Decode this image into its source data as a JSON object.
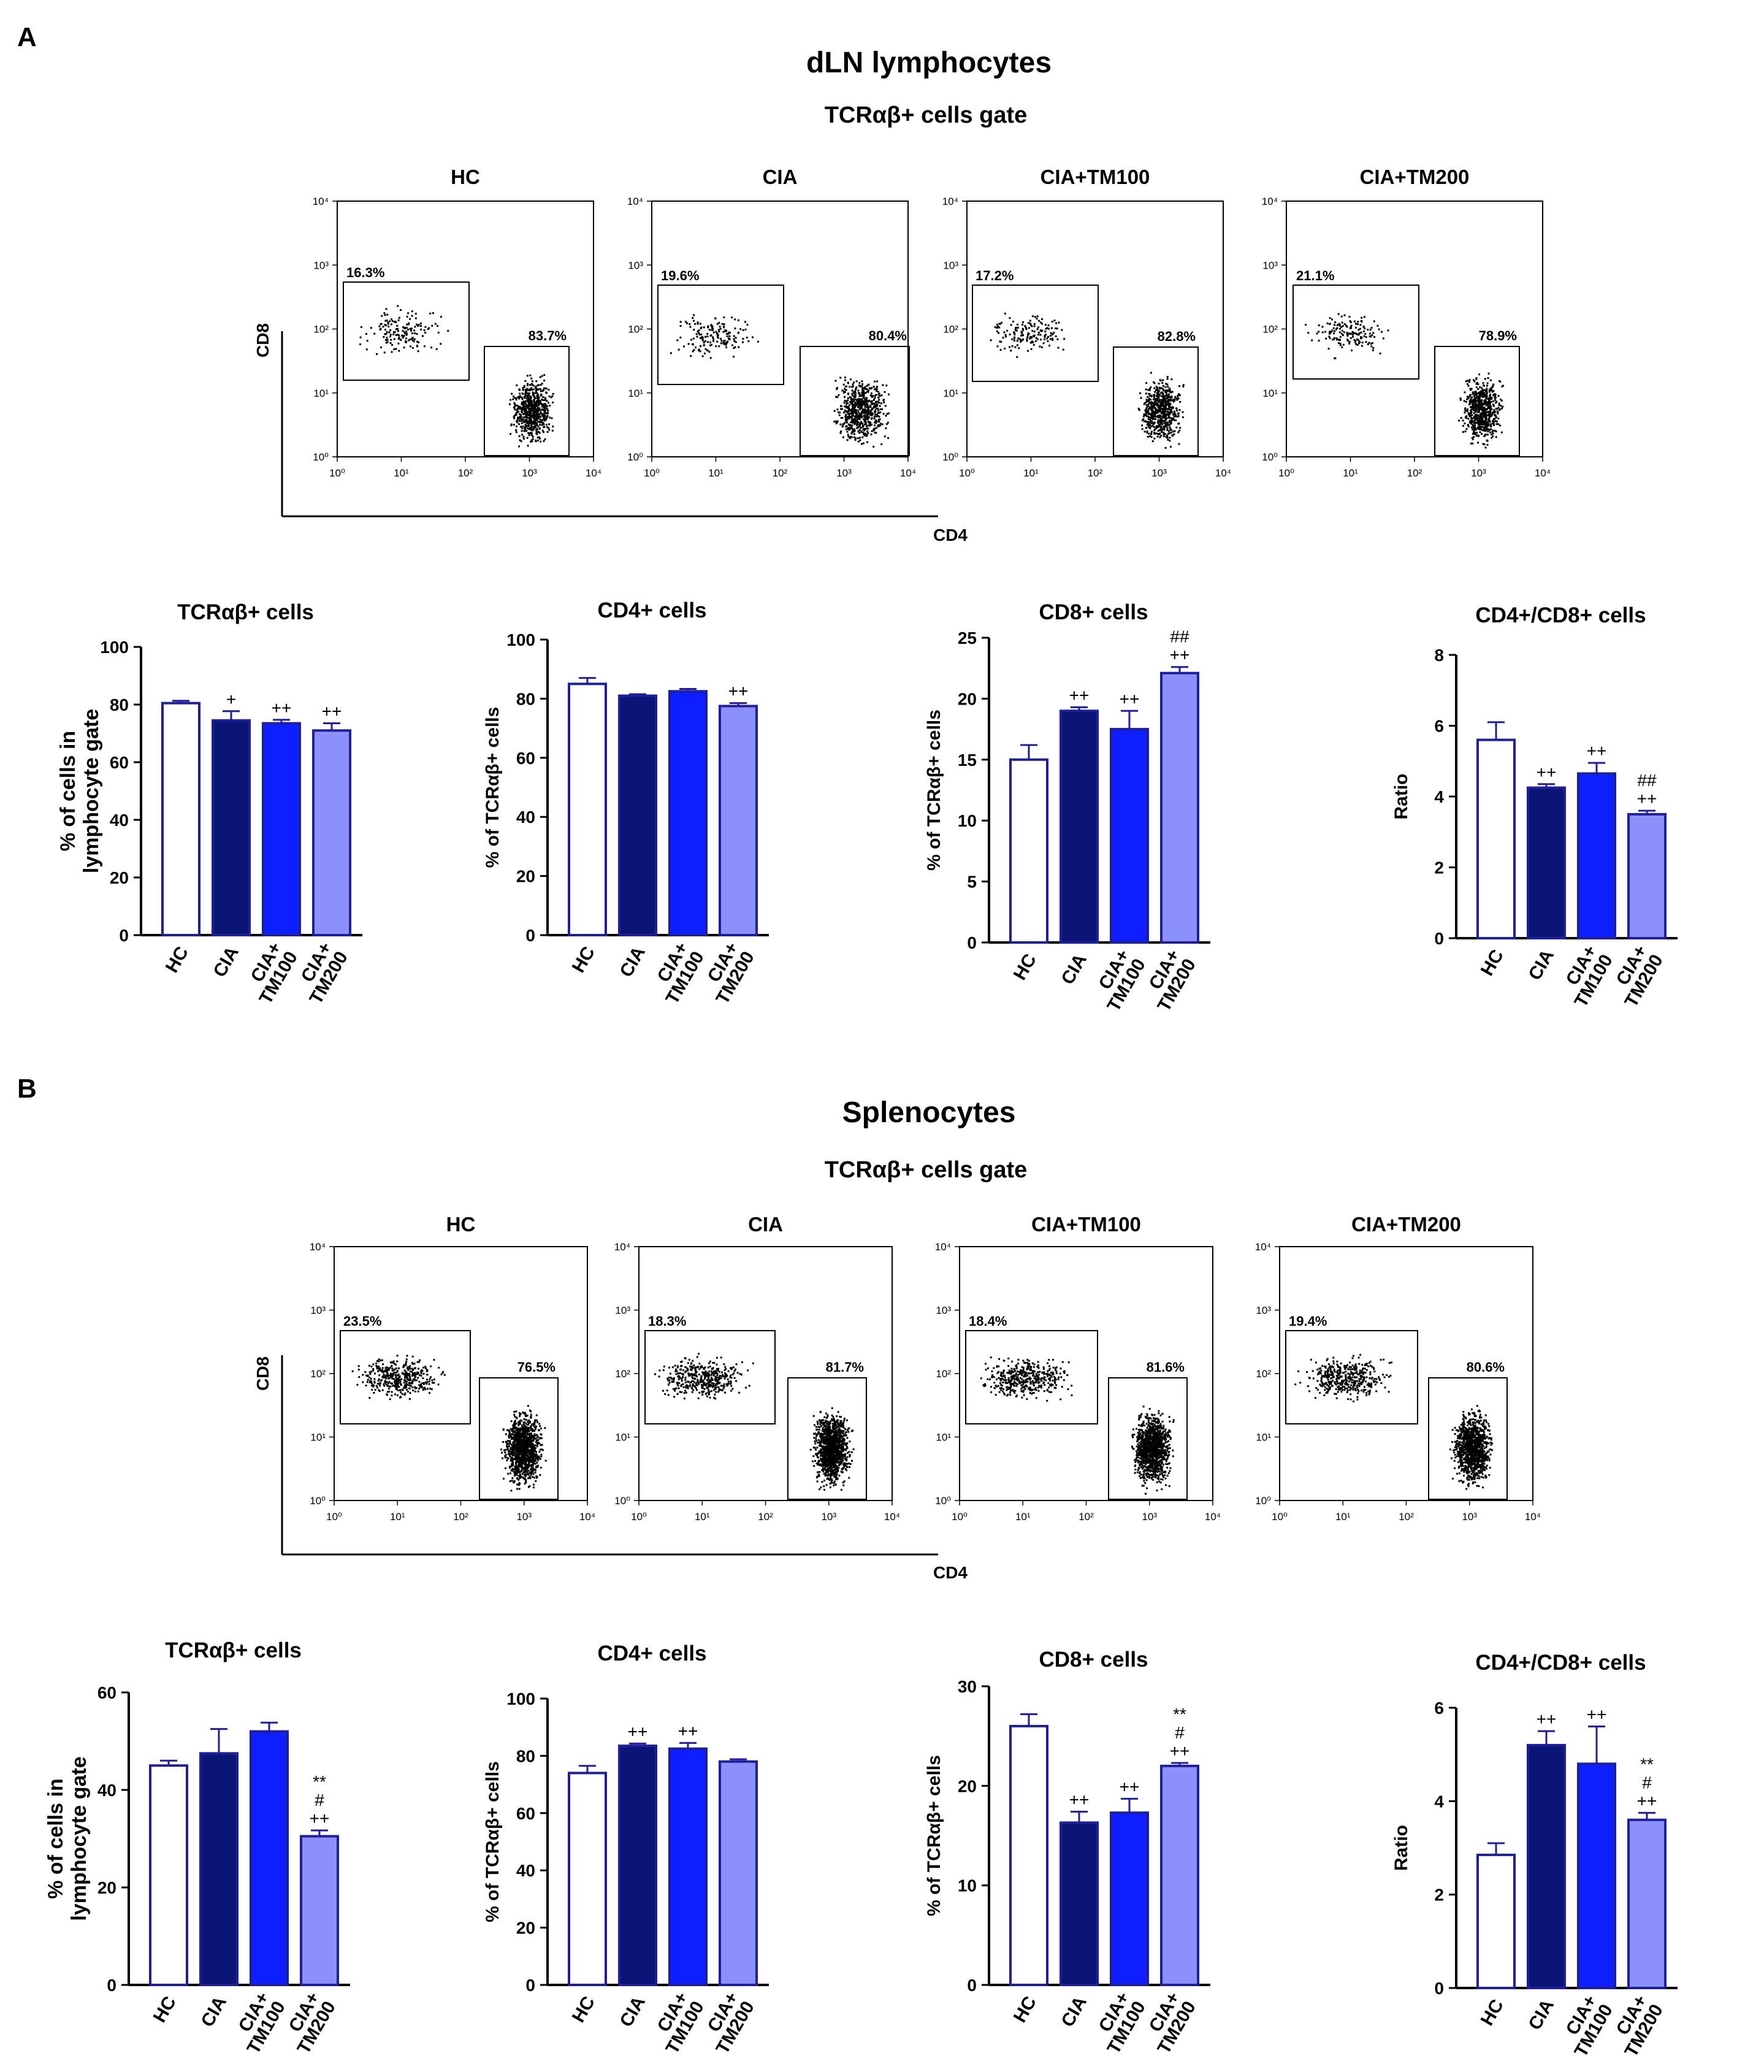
{
  "panels": [
    {
      "label": "A",
      "title": "dLN lymphocytes",
      "gate_title": "TCRαβ+ cells gate",
      "flow": {
        "y_axis_label": "CD8",
        "x_axis_label": "CD4",
        "tick_labels": [
          "10⁰",
          "10¹",
          "10²",
          "10³",
          "10⁴"
        ],
        "plots": [
          {
            "title": "HC",
            "cd8_pct": "16.3%",
            "cd4_pct": "83.7%"
          },
          {
            "title": "CIA",
            "cd8_pct": "19.6%",
            "cd4_pct": "80.4%"
          },
          {
            "title": "CIA+TM100",
            "cd8_pct": "17.2%",
            "cd4_pct": "82.8%"
          },
          {
            "title": "CIA+TM200",
            "cd8_pct": "21.1%",
            "cd4_pct": "78.9%"
          }
        ]
      },
      "chart_data": [
        {
          "type": "bar",
          "title": "TCRαβ+ cells",
          "ylabel": "% of cells in lymphocyte gate",
          "categories": [
            "HC",
            "CIA",
            "CIA+\nTM100",
            "CIA+\nTM200"
          ],
          "values": [
            80.5,
            74.5,
            73.5,
            71
          ],
          "errors": [
            0.8,
            3.2,
            1.2,
            2.5
          ],
          "annotations": [
            [],
            [
              "+"
            ],
            [
              "++"
            ],
            [
              "++"
            ]
          ],
          "ylim": [
            0,
            100
          ],
          "yticks": [
            0,
            20,
            40,
            60,
            80,
            100
          ]
        },
        {
          "type": "bar",
          "title": "CD4+ cells",
          "ylabel": "% of TCRαβ+ cells",
          "categories": [
            "HC",
            "CIA",
            "CIA+\nTM100",
            "CIA+\nTM200"
          ],
          "values": [
            85,
            81,
            82.5,
            77.5
          ],
          "errors": [
            2,
            0.5,
            0.8,
            1
          ],
          "annotations": [
            [],
            [],
            [],
            [
              "++"
            ]
          ],
          "ylim": [
            0,
            100
          ],
          "yticks": [
            0,
            20,
            40,
            60,
            80,
            100
          ]
        },
        {
          "type": "bar",
          "title": "CD8+ cells",
          "ylabel": "% of TCRαβ+ cells",
          "categories": [
            "HC",
            "CIA",
            "CIA+\nTM100",
            "CIA+\nTM200"
          ],
          "values": [
            15,
            19,
            17.5,
            22.1
          ],
          "errors": [
            1.2,
            0.3,
            1.5,
            0.5
          ],
          "annotations": [
            [],
            [
              "++"
            ],
            [
              "++"
            ],
            [
              "++",
              "##"
            ]
          ],
          "ylim": [
            0,
            25
          ],
          "yticks": [
            0,
            5,
            10,
            15,
            20,
            25
          ]
        },
        {
          "type": "bar",
          "title": "CD4+/CD8+ cells",
          "ylabel": "Ratio",
          "categories": [
            "HC",
            "CIA",
            "CIA+\nTM100",
            "CIA+\nTM200"
          ],
          "values": [
            5.6,
            4.25,
            4.65,
            3.5
          ],
          "errors": [
            0.5,
            0.1,
            0.3,
            0.1
          ],
          "annotations": [
            [],
            [
              "++"
            ],
            [
              "++"
            ],
            [
              "++",
              "##"
            ]
          ],
          "ylim": [
            0,
            8
          ],
          "yticks": [
            0,
            2,
            4,
            6,
            8
          ]
        }
      ]
    },
    {
      "label": "B",
      "title": "Splenocytes",
      "gate_title": "TCRαβ+ cells gate",
      "flow": {
        "y_axis_label": "CD8",
        "x_axis_label": "CD4",
        "tick_labels": [
          "10⁰",
          "10¹",
          "10²",
          "10³",
          "10⁴"
        ],
        "plots": [
          {
            "title": "HC",
            "cd8_pct": "23.5%",
            "cd4_pct": "76.5%"
          },
          {
            "title": "CIA",
            "cd8_pct": "18.3%",
            "cd4_pct": "81.7%"
          },
          {
            "title": "CIA+TM100",
            "cd8_pct": "18.4%",
            "cd4_pct": "81.6%"
          },
          {
            "title": "CIA+TM200",
            "cd8_pct": "19.4%",
            "cd4_pct": "80.6%"
          }
        ]
      },
      "chart_data": [
        {
          "type": "bar",
          "title": "TCRαβ+ cells",
          "ylabel": "% of cells in lymphocyte gate",
          "categories": [
            "HC",
            "CIA",
            "CIA+\nTM100",
            "CIA+\nTM200"
          ],
          "values": [
            45,
            47.5,
            52,
            30.5
          ],
          "errors": [
            1,
            5,
            1.8,
            1.2
          ],
          "annotations": [
            [],
            [],
            [],
            [
              "++",
              "#",
              "**"
            ]
          ],
          "ylim": [
            0,
            60
          ],
          "yticks": [
            0,
            20,
            40,
            60
          ]
        },
        {
          "type": "bar",
          "title": "CD4+ cells",
          "ylabel": "% of TCRαβ+ cells",
          "categories": [
            "HC",
            "CIA",
            "CIA+\nTM100",
            "CIA+\nTM200"
          ],
          "values": [
            74,
            83.5,
            82.5,
            78
          ],
          "errors": [
            2.5,
            0.8,
            2,
            0.8
          ],
          "annotations": [
            [],
            [
              "++"
            ],
            [
              "++"
            ],
            []
          ],
          "ylim": [
            0,
            100
          ],
          "yticks": [
            0,
            20,
            40,
            60,
            80,
            100
          ]
        },
        {
          "type": "bar",
          "title": "CD8+ cells",
          "ylabel": "% of TCRαβ+ cells",
          "categories": [
            "HC",
            "CIA",
            "CIA+\nTM100",
            "CIA+\nTM200"
          ],
          "values": [
            26,
            16.3,
            17.3,
            22
          ],
          "errors": [
            1.2,
            1.1,
            1.4,
            0.3
          ],
          "annotations": [
            [],
            [
              "++"
            ],
            [
              "++"
            ],
            [
              "++",
              "#",
              "**"
            ]
          ],
          "ylim": [
            0,
            30
          ],
          "yticks": [
            0,
            10,
            20,
            30
          ]
        },
        {
          "type": "bar",
          "title": "CD4+/CD8+ cells",
          "ylabel": "Ratio",
          "categories": [
            "HC",
            "CIA",
            "CIA+\nTM100",
            "CIA+\nTM200"
          ],
          "values": [
            2.85,
            5.2,
            4.8,
            3.6
          ],
          "errors": [
            0.25,
            0.3,
            0.8,
            0.15
          ],
          "annotations": [
            [],
            [
              "++"
            ],
            [
              "++"
            ],
            [
              "++",
              "#",
              "**"
            ]
          ],
          "ylim": [
            0,
            6
          ],
          "yticks": [
            0,
            2,
            4,
            6
          ]
        }
      ]
    }
  ],
  "colors": {
    "outline": "#1f1f9a",
    "HC": "#ffffff",
    "CIA": "#0b1576",
    "CIA+TM100": "#0d1fff",
    "CIA+TM200": "#8c90fb",
    "axis": "#000000"
  }
}
